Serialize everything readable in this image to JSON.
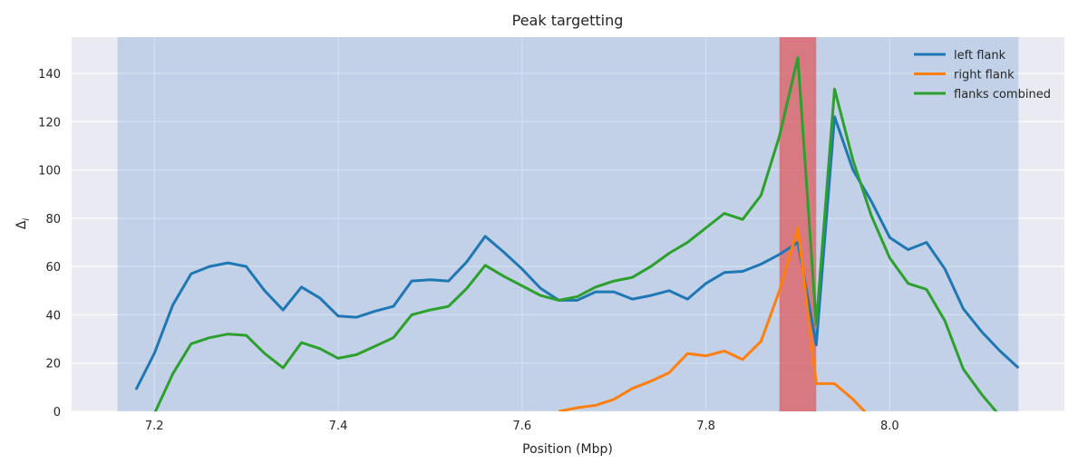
{
  "chart_data": {
    "type": "line",
    "title": "Peak targetting",
    "xlabel": "Position (Mbp)",
    "ylabel": "Δ",
    "ylabel_subscript": "i",
    "xlim": [
      7.11,
      8.19
    ],
    "ylim": [
      0,
      155
    ],
    "xticks": [
      7.2,
      7.4,
      7.6,
      7.8,
      8.0
    ],
    "xtick_labels": [
      "7.2",
      "7.4",
      "7.6",
      "7.8",
      "8.0"
    ],
    "yticks": [
      0,
      20,
      40,
      60,
      80,
      100,
      120,
      140
    ],
    "ytick_labels": [
      "0",
      "20",
      "40",
      "60",
      "80",
      "100",
      "120",
      "140"
    ],
    "grid": true,
    "legend_position": "top-right",
    "shaded_regions": [
      {
        "x0": 7.16,
        "x1": 8.14,
        "color": "#4a86c6",
        "opacity": 0.25
      },
      {
        "x0": 7.88,
        "x1": 7.92,
        "color": "#e44a4a",
        "opacity": 0.65
      }
    ],
    "series": [
      {
        "name": "left flank",
        "color": "#1f77b4",
        "x": [
          7.18,
          7.2,
          7.22,
          7.24,
          7.26,
          7.28,
          7.3,
          7.32,
          7.34,
          7.36,
          7.38,
          7.4,
          7.42,
          7.44,
          7.46,
          7.48,
          7.5,
          7.52,
          7.54,
          7.56,
          7.58,
          7.6,
          7.62,
          7.64,
          7.66,
          7.68,
          7.7,
          7.72,
          7.74,
          7.76,
          7.78,
          7.8,
          7.82,
          7.84,
          7.86,
          7.88,
          7.9,
          7.92,
          7.94,
          7.96,
          7.98,
          8.0,
          8.02,
          8.04,
          8.06,
          8.08,
          8.1,
          8.12,
          8.14
        ],
        "y": [
          9,
          24,
          44,
          57,
          60,
          61.5,
          60,
          50,
          42,
          51.5,
          47,
          39.5,
          39,
          41.5,
          43.5,
          54,
          54.5,
          54,
          62,
          72.5,
          66,
          59,
          51,
          46,
          46,
          49.5,
          49.5,
          46.5,
          48,
          50,
          46.5,
          53,
          57.5,
          58,
          61,
          65,
          70,
          27.5,
          122,
          100,
          87,
          72,
          67,
          70,
          59,
          42.5,
          33,
          25,
          18
        ]
      },
      {
        "name": "right flank",
        "color": "#ff7f0e",
        "x": [
          7.64,
          7.66,
          7.68,
          7.7,
          7.72,
          7.74,
          7.76,
          7.78,
          7.8,
          7.82,
          7.84,
          7.86,
          7.88,
          7.9,
          7.92,
          7.94,
          7.96,
          7.98
        ],
        "y": [
          0,
          1.5,
          2.5,
          5,
          9.5,
          12.5,
          16,
          24,
          23,
          25,
          21.5,
          29,
          50,
          76,
          11.5,
          11.5,
          5,
          -3
        ]
      },
      {
        "name": "flanks combined",
        "color": "#2ca02c",
        "x": [
          7.2,
          7.22,
          7.24,
          7.26,
          7.28,
          7.3,
          7.32,
          7.34,
          7.36,
          7.38,
          7.4,
          7.42,
          7.44,
          7.46,
          7.48,
          7.5,
          7.52,
          7.54,
          7.56,
          7.58,
          7.6,
          7.62,
          7.64,
          7.66,
          7.68,
          7.7,
          7.72,
          7.74,
          7.76,
          7.78,
          7.8,
          7.82,
          7.84,
          7.86,
          7.88,
          7.9,
          7.92,
          7.94,
          7.96,
          7.98,
          8.0,
          8.02,
          8.04,
          8.06,
          8.08,
          8.1,
          8.12
        ],
        "y": [
          -1,
          15.5,
          28,
          30.5,
          32,
          31.5,
          24,
          18,
          28.5,
          26,
          22,
          23.5,
          27,
          30.5,
          40,
          42,
          43.5,
          51,
          60.5,
          56,
          52,
          48,
          46,
          47.5,
          51.5,
          54,
          55.5,
          60,
          65.5,
          70,
          76,
          82,
          79.5,
          89.5,
          114,
          146.5,
          36,
          133.5,
          104,
          81,
          63.5,
          53,
          50.5,
          37.5,
          17.5,
          7,
          -2
        ]
      }
    ]
  }
}
